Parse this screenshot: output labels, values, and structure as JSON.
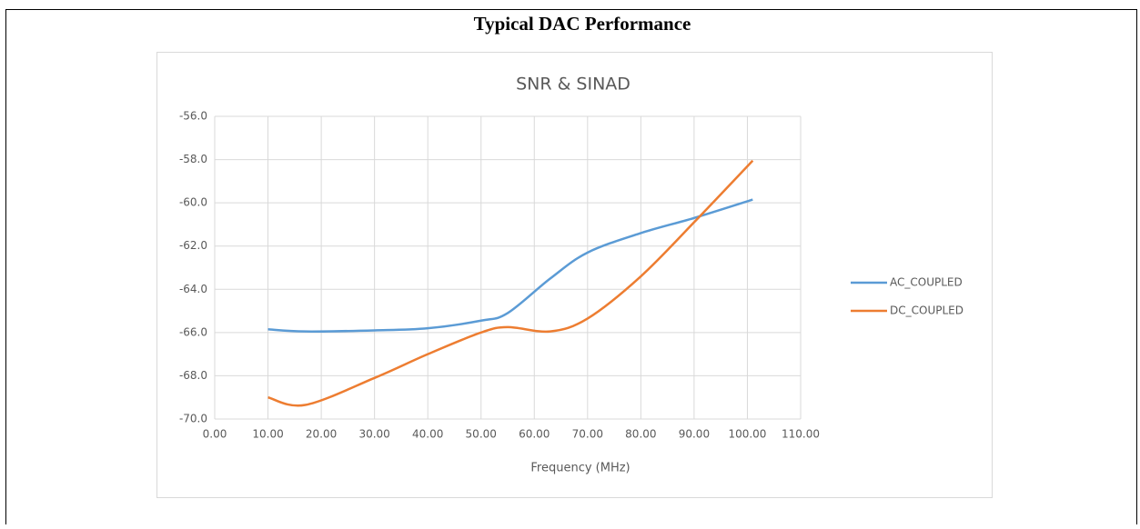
{
  "header": {
    "title": "Typical DAC Performance"
  },
  "chart_data": {
    "type": "line",
    "title": "SNR & SINAD",
    "xlabel": "Frequency (MHz)",
    "x": [
      10,
      17,
      30,
      40,
      50,
      55,
      63,
      70,
      80,
      90,
      101
    ],
    "series": [
      {
        "name": "AC_COUPLED",
        "color": "#5b9bd5",
        "values": [
          -65.85,
          -65.95,
          -65.9,
          -65.8,
          -65.45,
          -65.1,
          -63.5,
          -62.3,
          -61.4,
          -60.7,
          -59.85
        ]
      },
      {
        "name": "DC_COUPLED",
        "color": "#ed7d31",
        "values": [
          -69.0,
          -69.35,
          -68.1,
          -67.0,
          -66.0,
          -65.75,
          -65.95,
          -65.35,
          -63.4,
          -60.9,
          -58.05
        ]
      }
    ],
    "xlim": [
      0,
      110
    ],
    "xticks": [
      {
        "value": 0,
        "label": "0.00"
      },
      {
        "value": 10,
        "label": "10.00"
      },
      {
        "value": 20,
        "label": "20.00"
      },
      {
        "value": 30,
        "label": "30.00"
      },
      {
        "value": 40,
        "label": "40.00"
      },
      {
        "value": 50,
        "label": "50.00"
      },
      {
        "value": 60,
        "label": "60.00"
      },
      {
        "value": 70,
        "label": "70.00"
      },
      {
        "value": 80,
        "label": "80.00"
      },
      {
        "value": 90,
        "label": "90.00"
      },
      {
        "value": 100,
        "label": "100.00"
      },
      {
        "value": 110,
        "label": "110.00"
      }
    ],
    "ylim": [
      -70,
      -56
    ],
    "yticks": [
      {
        "value": -70,
        "label": "-70.0"
      },
      {
        "value": -68,
        "label": "-68.0"
      },
      {
        "value": -66,
        "label": "-66.0"
      },
      {
        "value": -64,
        "label": "-64.0"
      },
      {
        "value": -62,
        "label": "-62.0"
      },
      {
        "value": -60,
        "label": "-60.0"
      },
      {
        "value": -58,
        "label": "-58.0"
      },
      {
        "value": -56,
        "label": "-56.0"
      }
    ],
    "grid": true,
    "legend": "right"
  }
}
